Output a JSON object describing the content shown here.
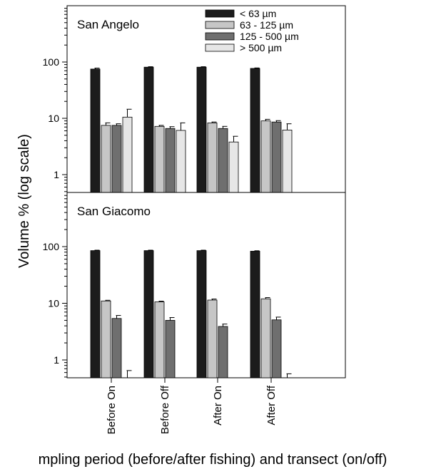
{
  "chart_data": {
    "type": "bar",
    "scale": "log",
    "ylabel": "Volume % (log scale)",
    "xlabel": "mpling period (before/after fishing) and transect (on/off)",
    "categories": [
      "Before On",
      "Before Off",
      "After On",
      "After Off"
    ],
    "legend_position": "top-right",
    "legend": [
      {
        "name": "< 63 µm",
        "color": "#1c1c1c"
      },
      {
        "name": "63 - 125 µm",
        "color": "#c6c6c6"
      },
      {
        "name": "125 - 500 µm",
        "color": "#6f6f6f"
      },
      {
        "name": "> 500 µm",
        "color": "#e6e6e6"
      }
    ],
    "y_ticks": [
      "1",
      "10",
      "100"
    ],
    "ylim": [
      0.5,
      600
    ],
    "panels": [
      {
        "title": "San Angelo",
        "series": [
          {
            "name": "< 63 µm",
            "values": [
              75,
              81,
              81,
              77
            ],
            "errors": [
              3,
              1.5,
              1.5,
              1.5
            ]
          },
          {
            "name": "63 - 125 µm",
            "values": [
              7.5,
              7.2,
              8.3,
              9
            ],
            "errors": [
              0.8,
              0.3,
              0.3,
              0.6
            ]
          },
          {
            "name": "125 - 500 µm",
            "values": [
              7.5,
              6.6,
              6.6,
              8.6
            ],
            "errors": [
              0.5,
              0.5,
              0.6,
              0.5
            ]
          },
          {
            "name": "> 500 µm",
            "values": [
              10.5,
              6.1,
              3.8,
              6.2
            ],
            "errors": [
              4,
              2.2,
              1,
              1.8
            ]
          }
        ]
      },
      {
        "title": "San Giacomo",
        "series": [
          {
            "name": "< 63 µm",
            "values": [
              85,
              85,
              85,
              83
            ],
            "errors": [
              1.5,
              1.5,
              1.5,
              1.5
            ]
          },
          {
            "name": "63 - 125 µm",
            "values": [
              11,
              10.6,
              11.4,
              12
            ],
            "errors": [
              0.3,
              0.3,
              0.5,
              0.6
            ]
          },
          {
            "name": "125 - 500 µm",
            "values": [
              5.4,
              5,
              3.9,
              5.1
            ],
            "errors": [
              0.7,
              0.6,
              0.4,
              0.6
            ]
          },
          {
            "name": "> 500 µm",
            "values": [
              0.35,
              0.3,
              0.3,
              0.35
            ],
            "errors": [
              0.3,
              0,
              0,
              0.22
            ]
          }
        ]
      }
    ]
  }
}
